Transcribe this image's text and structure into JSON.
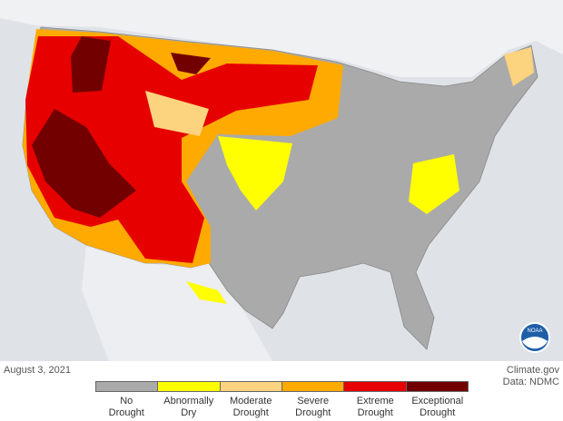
{
  "map": {
    "date": "August 3, 2021",
    "credit": "Climate.gov",
    "source": "Data: NDMC",
    "logo": "NOAA",
    "legend": [
      {
        "label": [
          "No",
          "Drought"
        ],
        "color": "#aaaaaa"
      },
      {
        "label": [
          "Abnormally",
          "Dry"
        ],
        "color": "#ffff00"
      },
      {
        "label": [
          "Moderate",
          "Drought"
        ],
        "color": "#fcd37f"
      },
      {
        "label": [
          "Severe",
          "Drought"
        ],
        "color": "#ffaa00"
      },
      {
        "label": [
          "Extreme",
          "Drought"
        ],
        "color": "#e60000"
      },
      {
        "label": [
          "Exceptional",
          "Drought"
        ],
        "color": "#730000"
      }
    ]
  }
}
